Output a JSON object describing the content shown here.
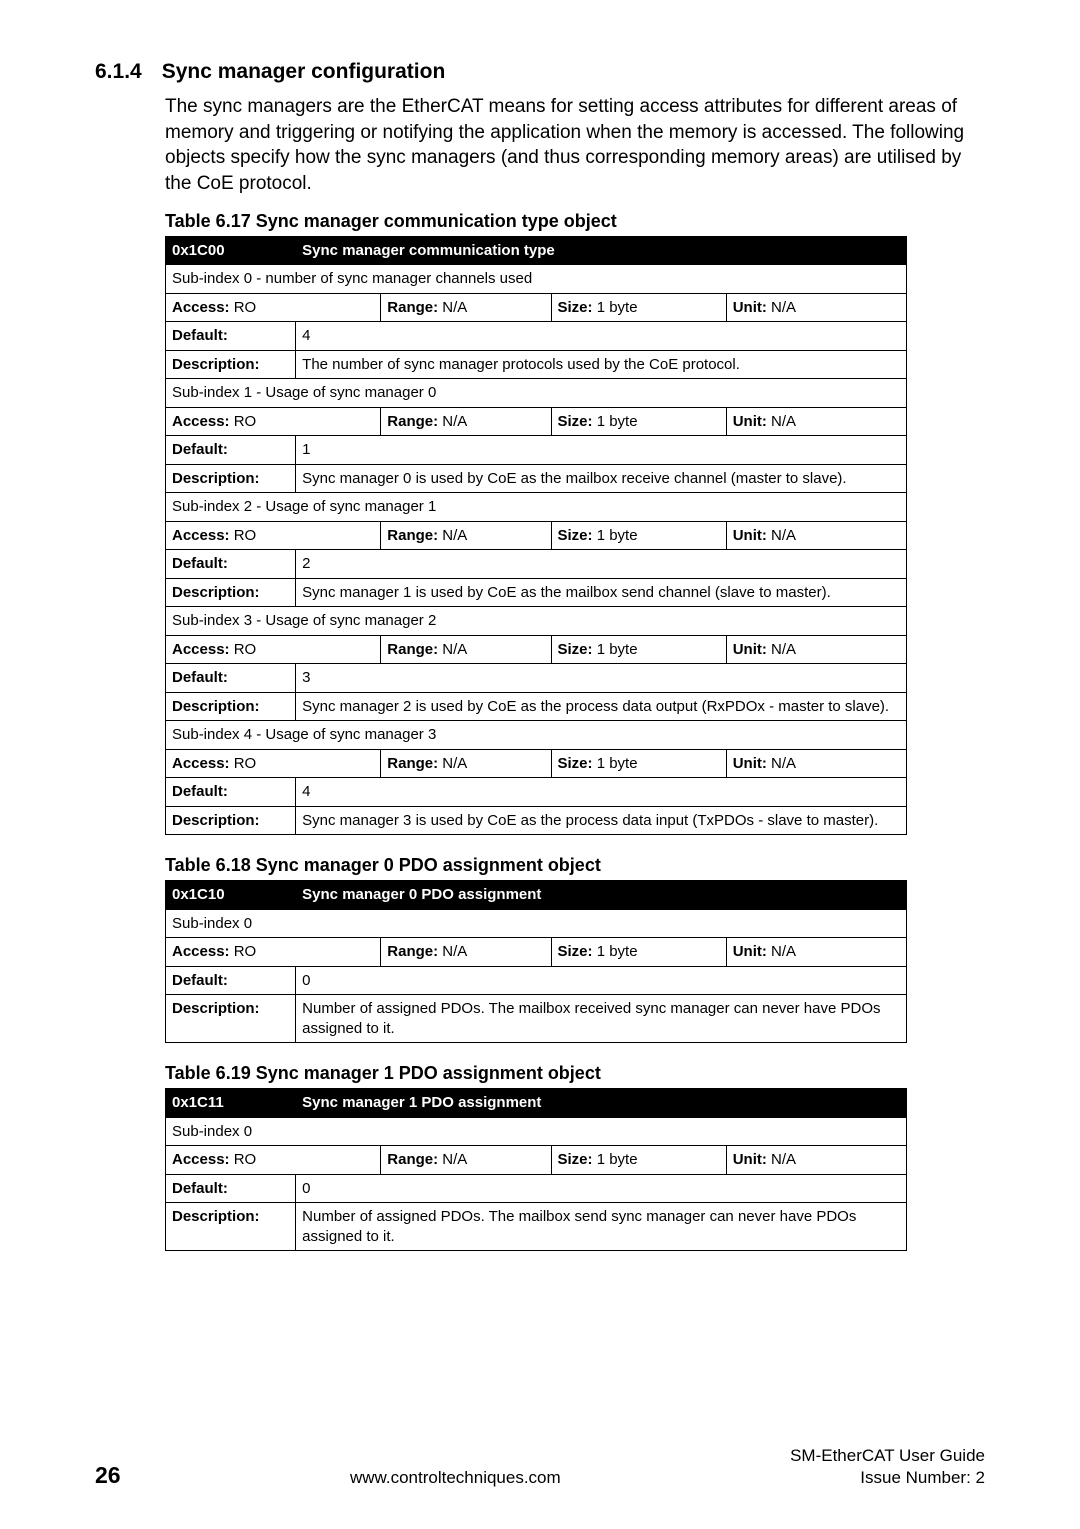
{
  "section": {
    "number": "6.1.4",
    "title": "Sync manager configuration",
    "paragraph": "The sync managers are the EtherCAT means for setting access attributes for different areas of memory and triggering or notifying  the application when the memory is accessed. The following objects specify how the sync managers (and thus corresponding memory areas) are utilised by the CoE protocol."
  },
  "table617": {
    "caption": "Table 6.17 Sync manager communication type object",
    "hex": "0x1C00",
    "name": "Sync manager communication type",
    "si0_label": "Sub-index 0 - number of sync manager channels used",
    "si0_access_l": "Access: ",
    "si0_access_v": "RO",
    "si0_range_l": "Range: ",
    "si0_range_v": "N/A",
    "si0_size_l": "Size: ",
    "si0_size_v": "1 byte",
    "si0_unit_l": "Unit: ",
    "si0_unit_v": "N/A",
    "si0_default_l": "Default:",
    "si0_default_v": "4",
    "si0_desc_l": "Description:",
    "si0_desc_v": "The number of sync manager protocols used by the CoE protocol.",
    "si1_label": "Sub-index 1 - Usage of sync manager 0",
    "si1_access_v": "RO",
    "si1_range_v": "N/A",
    "si1_size_v": "1 byte",
    "si1_unit_v": "N/A",
    "si1_default_v": "1",
    "si1_desc_v": "Sync manager 0 is used by CoE as the mailbox receive channel (master to slave).",
    "si2_label": "Sub-index 2 - Usage of sync manager 1",
    "si2_access_v": "RO",
    "si2_range_v": "N/A",
    "si2_size_v": "1 byte",
    "si2_unit_v": "N/A",
    "si2_default_v": "2",
    "si2_desc_v": "Sync manager 1 is used by CoE as the mailbox send channel (slave to master).",
    "si3_label": "Sub-index 3 - Usage of sync manager 2",
    "si3_access_v": "RO",
    "si3_range_v": "N/A",
    "si3_size_v": "1 byte",
    "si3_unit_v": "N/A",
    "si3_default_v": "3",
    "si3_desc_v": "Sync manager 2 is used by CoE as the process data output (RxPDOx - master to slave).",
    "si4_label": "Sub-index 4 - Usage of sync manager 3",
    "si4_access_v": "RO",
    "si4_range_v": "N/A",
    "si4_size_v": "1 byte",
    "si4_unit_v": "N/A",
    "si4_default_v": "4",
    "si4_desc_v": "Sync manager 3 is used by CoE as the process data input (TxPDOs - slave to master)."
  },
  "table618": {
    "caption": "Table 6.18 Sync manager 0 PDO assignment object",
    "hex": "0x1C10",
    "name": "Sync manager 0 PDO assignment",
    "si0_label": "Sub-index 0",
    "access_v": "RO",
    "range_v": "N/A",
    "size_v": "1 byte",
    "unit_v": "N/A",
    "default_v": "0",
    "desc_v": "Number of assigned PDOs. The mailbox received sync manager can never have PDOs assigned to it."
  },
  "table619": {
    "caption": "Table 6.19 Sync manager 1 PDO assignment object",
    "hex": "0x1C11",
    "name": "Sync manager 1 PDO assignment",
    "si0_label": "Sub-index 0",
    "access_v": "RO",
    "range_v": "N/A",
    "size_v": "1 byte",
    "unit_v": "N/A",
    "default_v": "0",
    "desc_v": "Number of assigned PDOs. The mailbox send sync manager can never have PDOs assigned to it."
  },
  "labels": {
    "access": "Access: ",
    "range": "Range: ",
    "size": "Size: ",
    "unit": "Unit: ",
    "default": "Default:",
    "description": "Description:"
  },
  "footer": {
    "pagenum": "26",
    "url": "www.controltechniques.com",
    "guide": "SM-EtherCAT User Guide",
    "issue": "Issue Number:  2"
  }
}
